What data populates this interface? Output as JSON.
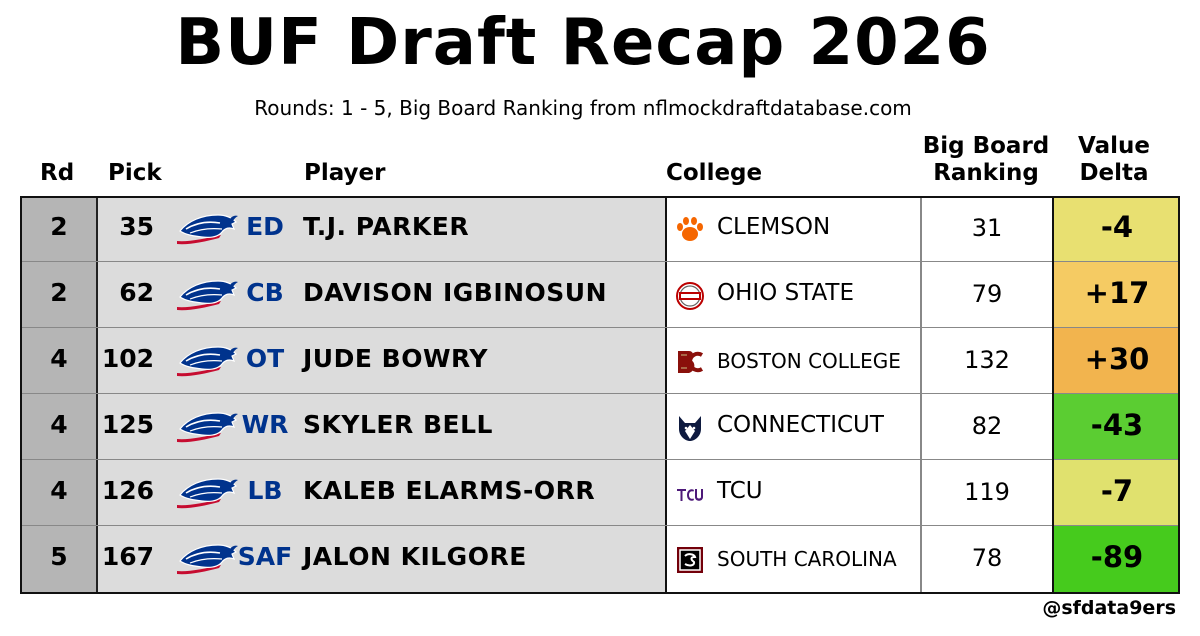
{
  "title": "BUF Draft Recap 2026",
  "subtitle": "Rounds: 1 - 5, Big Board Ranking from nflmockdraftdatabase.com",
  "headers": {
    "rd": "Rd",
    "pick": "Pick",
    "player": "Player",
    "college": "College",
    "big_board_1": "Big Board",
    "big_board_2": "Ranking",
    "value_1": "Value",
    "value_2": "Delta"
  },
  "team_logo_icon": "bills-buffalo-logo-icon",
  "colors": {
    "position_text": "#00338D",
    "rd_bg": "#b5b5b5",
    "main_bg": "#dcdcdc"
  },
  "rows": [
    {
      "rd": "2",
      "pick": "35",
      "pos": "ED",
      "player": "T.J. PARKER",
      "college": "CLEMSON",
      "college_icon": "clemson-paw-icon",
      "big_board": "31",
      "delta": "-4",
      "delta_color": "#e8e071"
    },
    {
      "rd": "2",
      "pick": "62",
      "pos": "CB",
      "player": "DAVISON IGBINOSUN",
      "college": "OHIO STATE",
      "college_icon": "ohio-state-icon",
      "big_board": "79",
      "delta": "+17",
      "delta_color": "#f5cb63"
    },
    {
      "rd": "4",
      "pick": "102",
      "pos": "OT",
      "player": "JUDE BOWRY",
      "college": "BOSTON COLLEGE",
      "college_icon": "boston-college-icon",
      "big_board": "132",
      "delta": "+30",
      "delta_color": "#f2b44e"
    },
    {
      "rd": "4",
      "pick": "125",
      "pos": "WR",
      "player": "SKYLER BELL",
      "college": "CONNECTICUT",
      "college_icon": "uconn-husky-icon",
      "big_board": "82",
      "delta": "-43",
      "delta_color": "#5bcd32"
    },
    {
      "rd": "4",
      "pick": "126",
      "pos": "LB",
      "player": "KALEB ELARMS-ORR",
      "college": "TCU",
      "college_icon": "tcu-icon",
      "big_board": "119",
      "delta": "-7",
      "delta_color": "#e0e16e"
    },
    {
      "rd": "5",
      "pick": "167",
      "pos": "SAF",
      "player": "JALON KILGORE",
      "college": "SOUTH CAROLINA",
      "college_icon": "south-carolina-icon",
      "big_board": "78",
      "delta": "-89",
      "delta_color": "#46cb1d"
    }
  ],
  "credit": "@sfdata9ers"
}
